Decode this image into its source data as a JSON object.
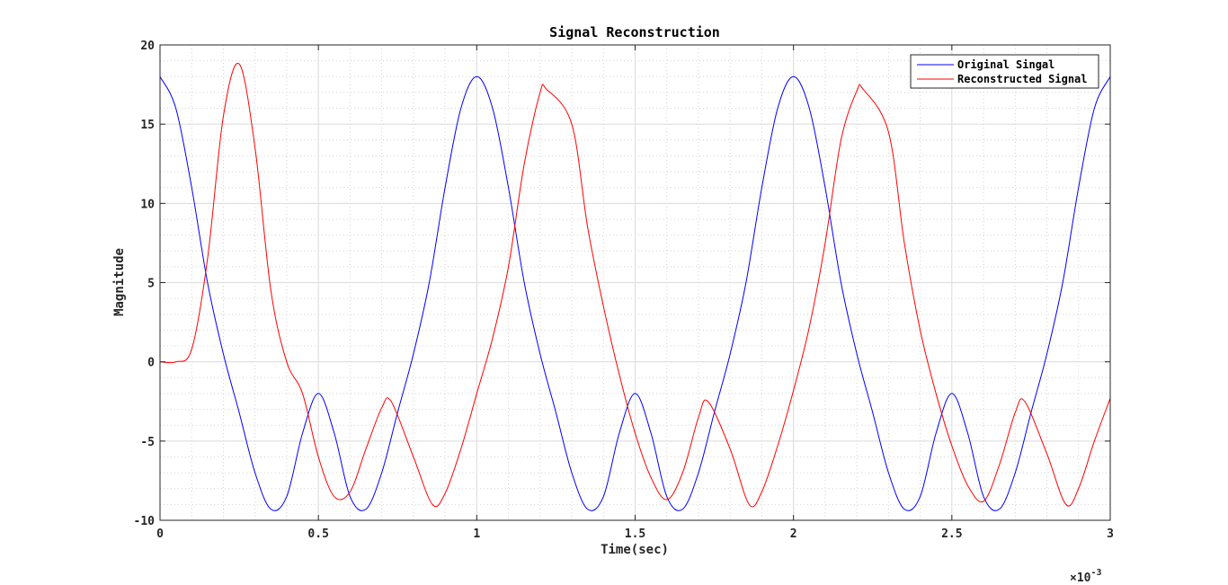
{
  "chart_data": {
    "type": "line",
    "title": "Signal Reconstruction",
    "xlabel": "Time(sec)",
    "ylabel": "Magnitude",
    "x_exponent_label": "×10",
    "x_exponent_power": "-3",
    "xlim": [
      0,
      0.003
    ],
    "ylim": [
      -10,
      20
    ],
    "x_ticks": [
      0,
      0.0005,
      0.001,
      0.0015,
      0.002,
      0.0025,
      0.003
    ],
    "x_tick_labels": [
      "0",
      "0.5",
      "1",
      "1.5",
      "2",
      "2.5",
      "3"
    ],
    "y_ticks": [
      -10,
      -5,
      0,
      5,
      10,
      15,
      20
    ],
    "y_tick_labels": [
      "-10",
      "-5",
      "0",
      "5",
      "10",
      "15",
      "20"
    ],
    "grid": true,
    "minor_grid": true,
    "legend_position": "top-right",
    "series": [
      {
        "name": "Original Singal",
        "color": "#0000ff",
        "x": [
          0,
          5e-05,
          0.0001,
          0.00015,
          0.0002,
          0.00025,
          0.0003,
          0.00035,
          0.0004,
          0.00045,
          0.0005,
          0.00055,
          0.0006,
          0.00065,
          0.0007,
          0.00075,
          0.0008,
          0.00085,
          0.0009,
          0.00095,
          0.001,
          0.00105,
          0.0011,
          0.00115,
          0.0012,
          0.00125,
          0.0013,
          0.00135,
          0.0014,
          0.00145,
          0.0015,
          0.00155,
          0.0016,
          0.00165,
          0.0017,
          0.00175,
          0.0018,
          0.00185,
          0.0019,
          0.00195,
          0.002,
          0.00205,
          0.0021,
          0.00215,
          0.0022,
          0.00225,
          0.0023,
          0.00235,
          0.0024,
          0.00245,
          0.0025,
          0.00255,
          0.0026,
          0.00265,
          0.0027,
          0.00275,
          0.0028,
          0.00285,
          0.0029,
          0.00295,
          0.003
        ],
        "y": [
          18.0,
          16.0,
          11.0,
          5.0,
          0.5,
          -3.2,
          -7.0,
          -9.3,
          -8.5,
          -4.5,
          -2.0,
          -4.5,
          -8.5,
          -9.3,
          -7.0,
          -3.2,
          0.5,
          5.0,
          11.0,
          16.0,
          18.0,
          16.0,
          11.0,
          5.0,
          0.5,
          -3.2,
          -7.0,
          -9.3,
          -8.5,
          -4.5,
          -2.0,
          -4.5,
          -8.5,
          -9.3,
          -7.0,
          -3.2,
          0.5,
          5.0,
          11.0,
          16.0,
          18.0,
          16.0,
          11.0,
          5.0,
          0.5,
          -3.2,
          -7.0,
          -9.3,
          -8.5,
          -4.5,
          -2.0,
          -4.5,
          -8.5,
          -9.3,
          -7.0,
          -3.2,
          0.5,
          5.0,
          11.0,
          16.0,
          18.0
        ]
      },
      {
        "name": "Reconstructed Signal",
        "color": "#ff0000",
        "x": [
          0,
          5e-05,
          0.0001,
          0.00015,
          0.0002,
          0.00025,
          0.0003,
          0.00035,
          0.0004,
          0.00045,
          0.0005,
          0.00055,
          0.0006,
          0.00065,
          0.0007,
          0.00073,
          0.0008,
          0.00086,
          0.0009,
          0.00095,
          0.001,
          0.00105,
          0.0011,
          0.00115,
          0.0012,
          0.00122,
          0.0013,
          0.00135,
          0.0014,
          0.00145,
          0.0015,
          0.00155,
          0.0016,
          0.00165,
          0.0017,
          0.00173,
          0.0018,
          0.00186,
          0.0019,
          0.00195,
          0.002,
          0.00205,
          0.0021,
          0.00215,
          0.0022,
          0.00222,
          0.0023,
          0.00235,
          0.0024,
          0.00245,
          0.0025,
          0.00255,
          0.0026,
          0.00265,
          0.0027,
          0.00273,
          0.0028,
          0.00286,
          0.0029,
          0.00295,
          0.003
        ],
        "y": [
          0.0,
          0.0,
          0.8,
          6.5,
          15.5,
          18.8,
          13.5,
          4.5,
          0.0,
          -2.0,
          -6.0,
          -8.5,
          -8.2,
          -5.5,
          -2.9,
          -2.5,
          -6.0,
          -9.0,
          -8.3,
          -5.5,
          -2.0,
          1.5,
          6.0,
          12.5,
          17.0,
          17.2,
          15.0,
          8.5,
          3.5,
          -0.8,
          -4.5,
          -7.3,
          -8.7,
          -7.0,
          -3.5,
          -2.5,
          -5.5,
          -9.0,
          -8.2,
          -5.3,
          -1.8,
          2.2,
          7.5,
          14.0,
          17.1,
          17.2,
          14.5,
          7.5,
          2.0,
          -2.0,
          -5.3,
          -7.8,
          -8.8,
          -6.5,
          -3.2,
          -2.5,
          -5.8,
          -9.0,
          -8.0,
          -5.0,
          -2.3
        ]
      }
    ]
  }
}
